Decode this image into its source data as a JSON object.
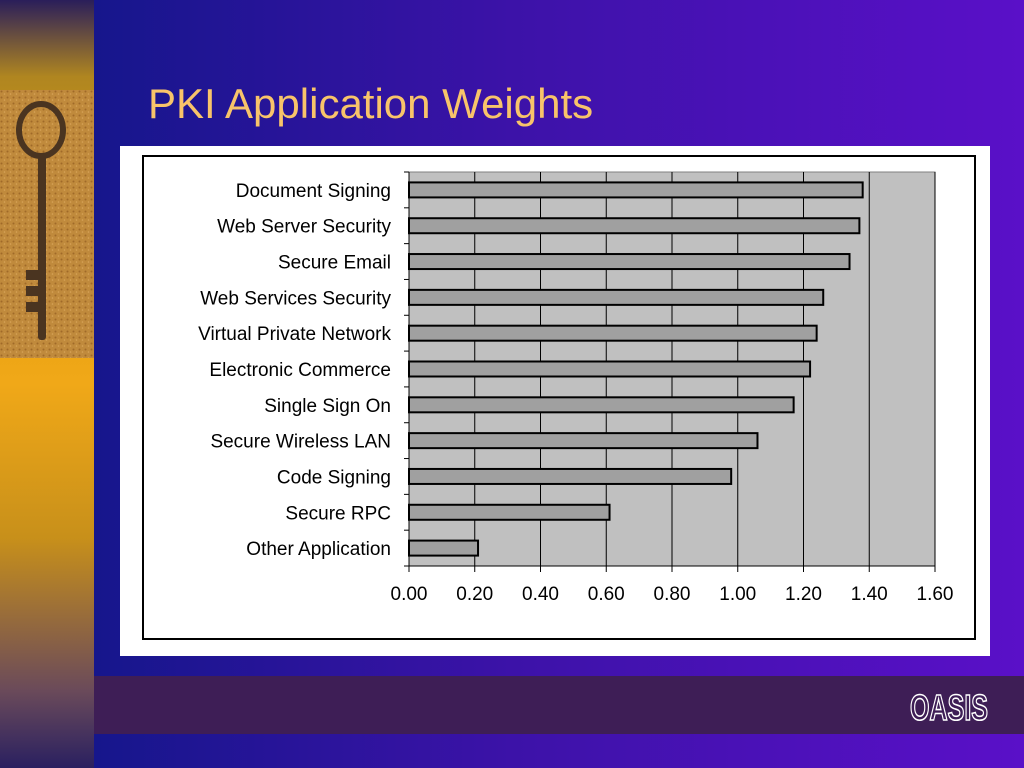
{
  "slide": {
    "title": "PKI Application Weights",
    "logo_text": "OASIS",
    "colors": {
      "title": "#f8c46a",
      "bar_fill": "#a0a0a0",
      "plot_bg": "#c0c0c0",
      "bottom_band": "#3e1e56"
    },
    "icons": {
      "left_image": "antique-key-icon",
      "logo": "oasis-logo"
    }
  },
  "chart_data": {
    "type": "bar",
    "orientation": "horizontal",
    "title": "",
    "xlabel": "",
    "ylabel": "",
    "categories": [
      "Document Signing",
      "Web Server Security",
      "Secure Email",
      "Web Services Security",
      "Virtual Private Network",
      "Electronic Commerce",
      "Single Sign On",
      "Secure Wireless LAN",
      "Code Signing",
      "Secure RPC",
      "Other Application"
    ],
    "values": [
      1.38,
      1.37,
      1.34,
      1.26,
      1.24,
      1.22,
      1.17,
      1.06,
      0.98,
      0.61,
      0.21
    ],
    "xlim": [
      0,
      1.6
    ],
    "xticks": [
      0.0,
      0.2,
      0.4,
      0.6,
      0.8,
      1.0,
      1.2,
      1.4,
      1.6
    ],
    "xtick_labels": [
      "0.00",
      "0.20",
      "0.40",
      "0.60",
      "0.80",
      "1.00",
      "1.20",
      "1.40",
      "1.60"
    ],
    "grid": true,
    "legend": "none"
  }
}
